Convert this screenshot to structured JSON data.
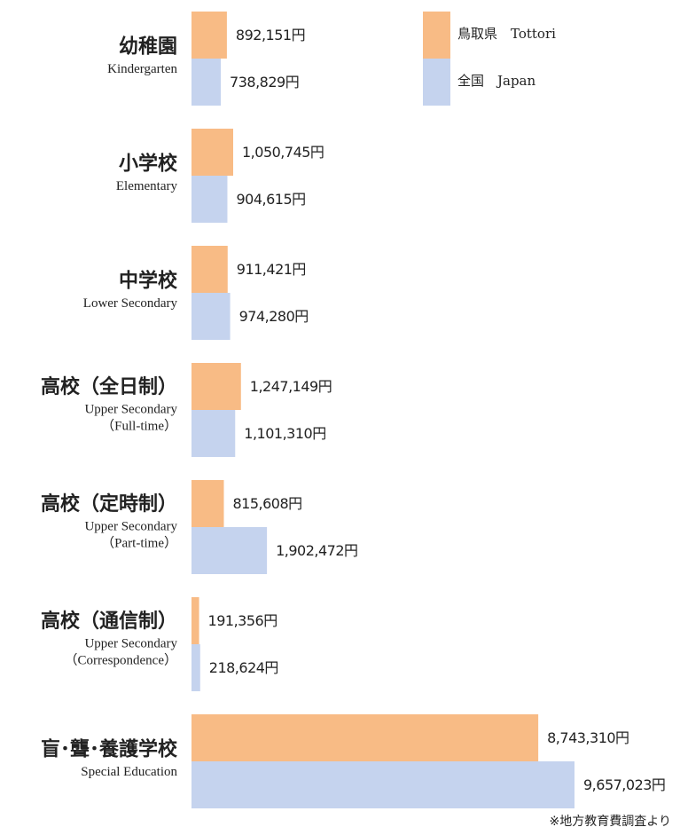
{
  "chart_data": {
    "type": "bar",
    "orientation": "horizontal",
    "categories": [
      "幼稚園",
      "小学校",
      "中学校",
      "高校（全日制）",
      "高校（定時制）",
      "高校（通信制）",
      "盲･聾･養護学校"
    ],
    "category_notes": [
      [
        "Kindergarten"
      ],
      [
        "Elementary"
      ],
      [
        "Lower Secondary"
      ],
      [
        "Upper Secondary",
        "（Full-time）"
      ],
      [
        "Upper Secondary",
        "（Part-time）"
      ],
      [
        "Upper Secondary",
        "（Correspondence）"
      ],
      [
        "Special Education"
      ]
    ],
    "series": [
      {
        "name": "鳥取県　Tottori",
        "color": "#f8bb85",
        "values": [
          892151,
          1050745,
          911421,
          1247149,
          815608,
          191356,
          8743310
        ],
        "value_labels": [
          "892,151円",
          "1,050,745円",
          "911,421円",
          "1,247,149円",
          "815,608円",
          "191,356円",
          "8,743,310円"
        ]
      },
      {
        "name": "全国　Japan",
        "color": "#c5d3ee",
        "values": [
          738829,
          904615,
          974280,
          1101310,
          1902472,
          218624,
          9657023
        ],
        "value_labels": [
          "738,829円",
          "904,615円",
          "974,280円",
          "1,101,310円",
          "1,902,472円",
          "218,624円",
          "9,657,023円"
        ]
      }
    ],
    "source": "※地方教育費調査より"
  }
}
